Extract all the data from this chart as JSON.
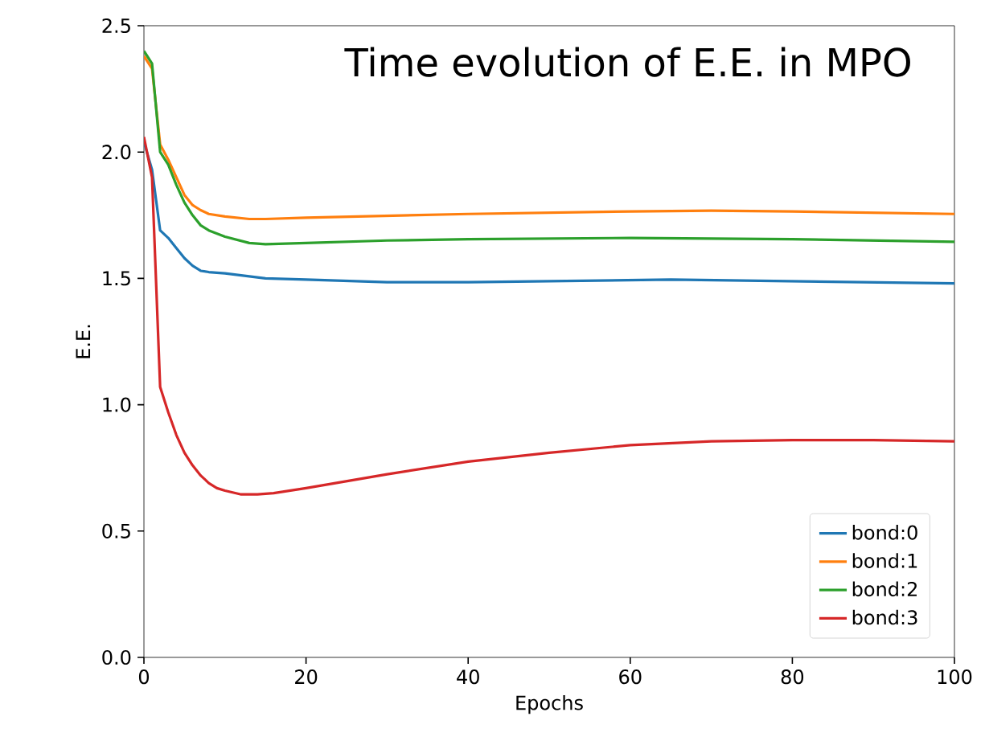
{
  "chart_data": {
    "type": "line",
    "title": "Time evolution of E.E. in MPO",
    "xlabel": "Epochs",
    "ylabel": "E.E.",
    "xlim": [
      0,
      100
    ],
    "ylim": [
      0,
      2.5
    ],
    "xticks": [
      0,
      20,
      40,
      60,
      80,
      100
    ],
    "yticks": [
      {
        "value": 0,
        "label": "0.0"
      },
      {
        "value": 0.5,
        "label": "0.5"
      },
      {
        "value": 1,
        "label": "1.0"
      },
      {
        "value": 1.5,
        "label": "1.5"
      },
      {
        "value": 2,
        "label": "2.0"
      },
      {
        "value": 2.5,
        "label": "2.5"
      }
    ],
    "legend": "bottom right",
    "grid": false,
    "series": [
      {
        "name": "bond:0",
        "color": "#1f77b4",
        "x": [
          0,
          1,
          2,
          3,
          4,
          5,
          6,
          7,
          8,
          10,
          15,
          20,
          30,
          40,
          65,
          100
        ],
        "values": [
          2.04,
          1.93,
          1.69,
          1.66,
          1.62,
          1.58,
          1.55,
          1.53,
          1.525,
          1.52,
          1.5,
          1.495,
          1.485,
          1.485,
          1.495,
          1.48
        ]
      },
      {
        "name": "bond:1",
        "color": "#ff7f0e",
        "x": [
          0,
          1,
          2,
          3,
          4,
          5,
          6,
          7,
          8,
          10,
          13,
          15,
          20,
          40,
          60,
          70,
          80,
          100
        ],
        "values": [
          2.38,
          2.33,
          2.03,
          1.97,
          1.9,
          1.83,
          1.79,
          1.77,
          1.755,
          1.745,
          1.735,
          1.735,
          1.74,
          1.755,
          1.765,
          1.768,
          1.765,
          1.755
        ]
      },
      {
        "name": "bond:2",
        "color": "#2ca02c",
        "x": [
          0,
          1,
          2,
          3,
          4,
          5,
          6,
          7,
          8,
          10,
          13,
          15,
          20,
          30,
          40,
          60,
          80,
          100
        ],
        "values": [
          2.4,
          2.35,
          2.0,
          1.95,
          1.87,
          1.8,
          1.75,
          1.71,
          1.69,
          1.665,
          1.64,
          1.635,
          1.64,
          1.65,
          1.655,
          1.66,
          1.655,
          1.645
        ]
      },
      {
        "name": "bond:3",
        "color": "#d62728",
        "x": [
          0,
          1,
          2,
          3,
          4,
          5,
          6,
          7,
          8,
          9,
          10,
          12,
          14,
          16,
          20,
          30,
          40,
          50,
          60,
          70,
          80,
          90,
          100
        ],
        "values": [
          2.06,
          1.9,
          1.07,
          0.97,
          0.88,
          0.81,
          0.76,
          0.72,
          0.69,
          0.67,
          0.66,
          0.645,
          0.645,
          0.65,
          0.67,
          0.725,
          0.775,
          0.81,
          0.84,
          0.855,
          0.86,
          0.86,
          0.855
        ]
      }
    ]
  }
}
